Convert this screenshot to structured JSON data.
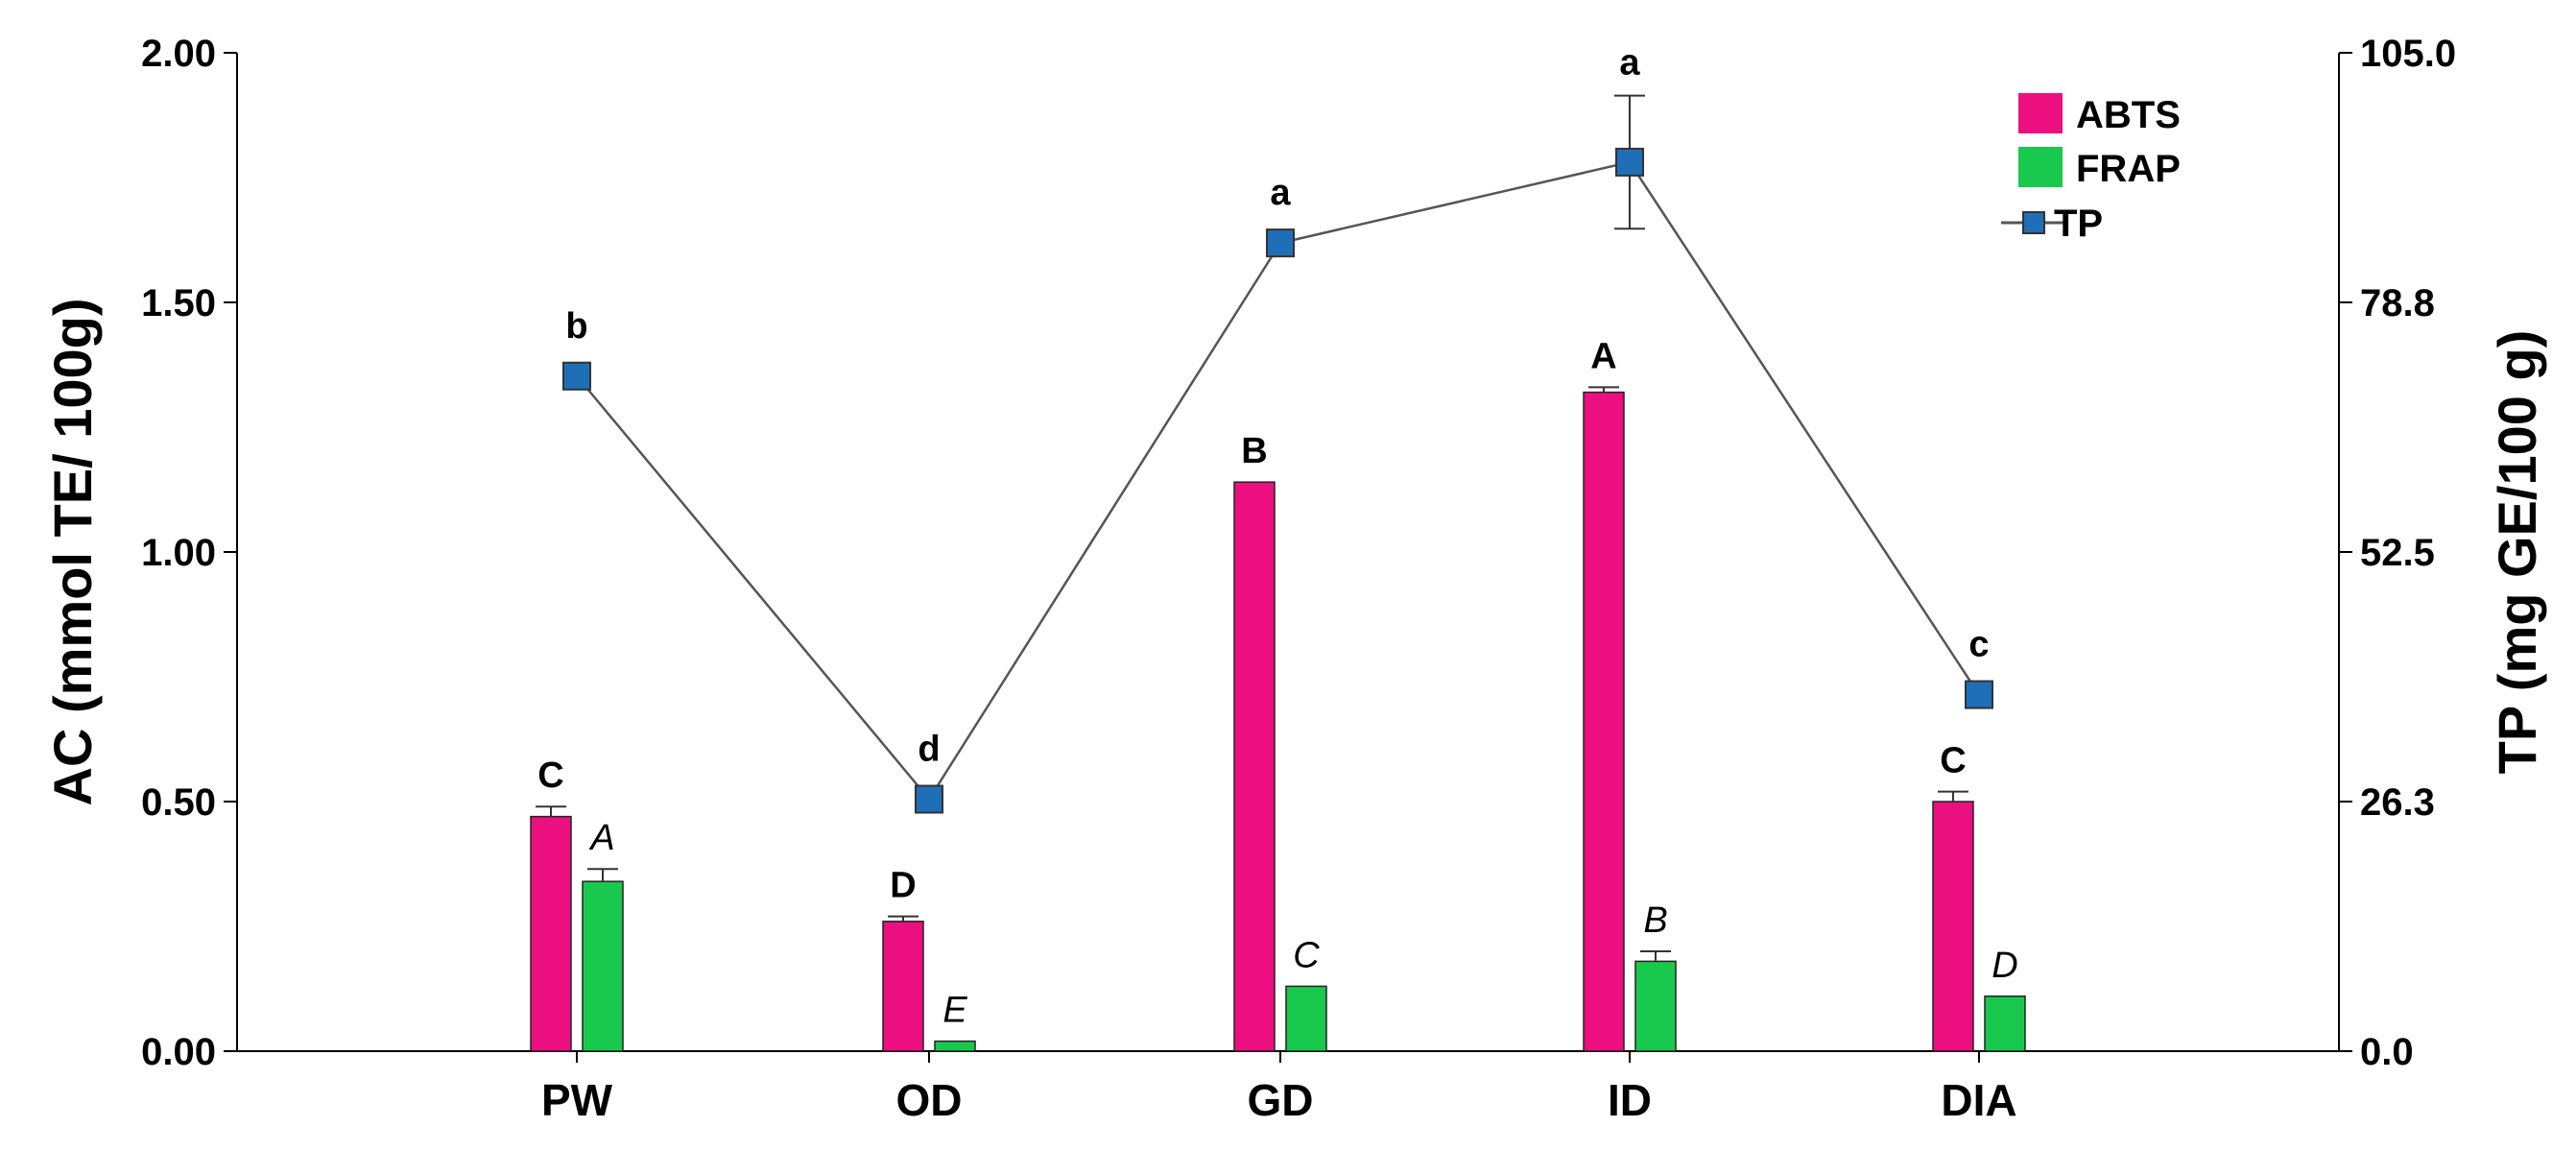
{
  "chart_data": {
    "type": "bar",
    "categories": [
      "PW",
      "OD",
      "GD",
      "ID",
      "DIA"
    ],
    "series": [
      {
        "name": "ABTS",
        "kind": "bar",
        "axis": "left",
        "color": "#ec0f7f",
        "values": [
          0.47,
          0.26,
          1.14,
          1.32,
          0.5
        ],
        "errors": [
          0.02,
          0.01,
          0.0,
          0.01,
          0.02
        ],
        "letters": [
          "C",
          "D",
          "B",
          "A",
          "C"
        ]
      },
      {
        "name": "FRAP",
        "kind": "bar",
        "axis": "left",
        "color": "#18c94e",
        "values": [
          0.34,
          0.02,
          0.13,
          0.18,
          0.11
        ],
        "errors": [
          0.025,
          0.0,
          0.0,
          0.02,
          0.0
        ],
        "letters": [
          "A",
          "E",
          "C",
          "B",
          "D"
        ]
      },
      {
        "name": "TP",
        "kind": "line",
        "axis": "right",
        "color": "#1e6fb8",
        "values": [
          71.0,
          26.5,
          85.0,
          93.5,
          37.5
        ],
        "errors": [
          0.0,
          0.0,
          0.0,
          7.0,
          0.0
        ],
        "letters": [
          "b",
          "d",
          "a",
          "a",
          "c"
        ]
      }
    ],
    "left_axis": {
      "label": "AC (mmol TE/ 100g)",
      "range": [
        0,
        2.0
      ],
      "ticks": [
        "0.00",
        "0.50",
        "1.00",
        "1.50",
        "2.00"
      ]
    },
    "right_axis": {
      "label": "TP (mg GE/100 g)",
      "range": [
        0,
        105.0
      ],
      "ticks": [
        "0.0",
        "26.3",
        "52.5",
        "78.8",
        "105.0"
      ]
    },
    "legend": {
      "placement": "top-right",
      "entries": [
        "ABTS",
        "FRAP",
        "TP"
      ]
    },
    "grid": false
  }
}
